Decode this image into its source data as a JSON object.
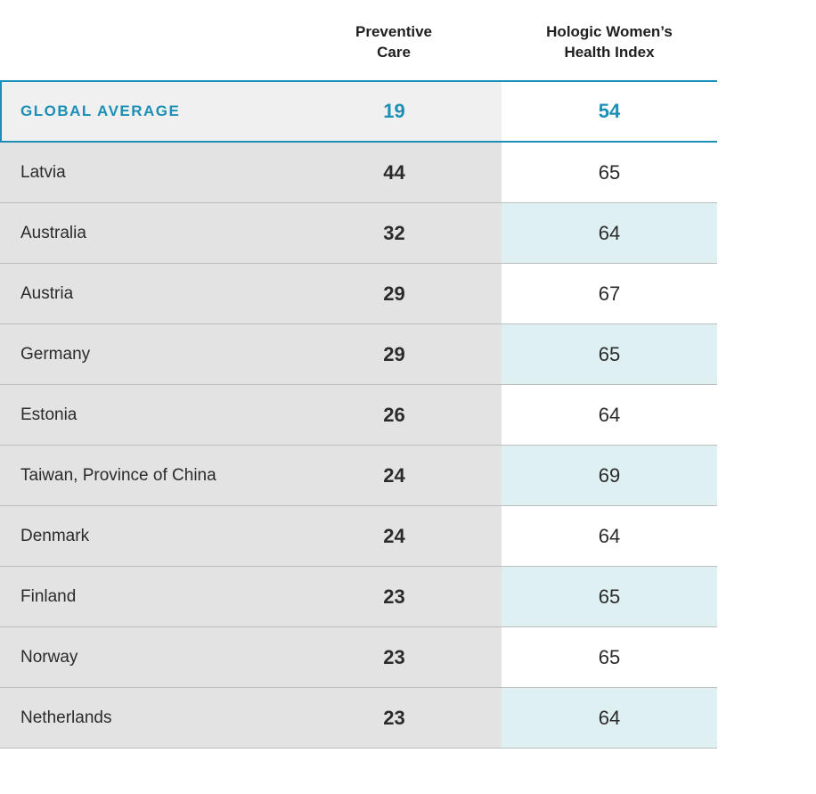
{
  "chart_data": {
    "type": "table",
    "columns": [
      "",
      "Preventive\nCare",
      "Hologic Women’s\nHealth Index"
    ],
    "global_average": {
      "label": "GLOBAL AVERAGE",
      "preventive_care": "19",
      "index": "54"
    },
    "rows": [
      {
        "country": "Latvia",
        "preventive_care": "44",
        "index": "65"
      },
      {
        "country": "Australia",
        "preventive_care": "32",
        "index": "64"
      },
      {
        "country": "Austria",
        "preventive_care": "29",
        "index": "67"
      },
      {
        "country": "Germany",
        "preventive_care": "29",
        "index": "65"
      },
      {
        "country": "Estonia",
        "preventive_care": "26",
        "index": "64"
      },
      {
        "country": "Taiwan, Province of China",
        "preventive_care": "24",
        "index": "69"
      },
      {
        "country": "Denmark",
        "preventive_care": "24",
        "index": "64"
      },
      {
        "country": "Finland",
        "preventive_care": "23",
        "index": "65"
      },
      {
        "country": "Norway",
        "preventive_care": "23",
        "index": "65"
      },
      {
        "country": "Netherlands",
        "preventive_care": "23",
        "index": "64"
      }
    ]
  },
  "colors": {
    "accent": "#1b8fb5",
    "label_column_bg": "#e3e3e3",
    "index_shade_bg": "#dff0f3",
    "row_border": "#bdbdbd"
  }
}
